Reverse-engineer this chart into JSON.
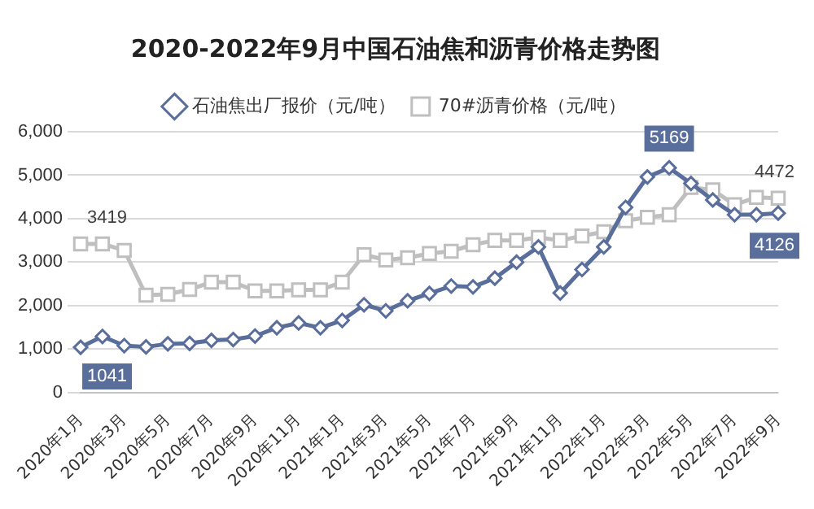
{
  "chart_data": {
    "type": "line",
    "title": "2020-2022年9月中国石油焦和沥青价格走势图",
    "categories": [
      "2020年1月",
      null,
      "2020年3月",
      null,
      "2020年5月",
      null,
      "2020年7月",
      null,
      "2020年9月",
      null,
      "2020年11月",
      null,
      "2021年1月",
      null,
      "2021年3月",
      null,
      "2021年5月",
      null,
      "2021年7月",
      null,
      "2021年9月",
      null,
      "2021年11月",
      null,
      "2022年1月",
      null,
      "2022年3月",
      null,
      "2022年5月",
      null,
      "2022年7月",
      null,
      "2022年9月"
    ],
    "series": [
      {
        "name": "石油焦出厂报价（元/吨）",
        "color": "#5a6e9c",
        "marker": "diamond",
        "values": [
          1041,
          1290,
          1080,
          1050,
          1120,
          1130,
          1200,
          1220,
          1300,
          1490,
          1600,
          1490,
          1660,
          2020,
          1880,
          2110,
          2280,
          2450,
          2430,
          2630,
          3000,
          3350,
          2290,
          2830,
          3350,
          4260,
          4960,
          5169,
          4810,
          4430,
          4090,
          4090,
          4126
        ],
        "value_labels": [
          "1041",
          null,
          null,
          null,
          null,
          null,
          null,
          null,
          null,
          null,
          null,
          null,
          null,
          null,
          null,
          null,
          null,
          null,
          null,
          null,
          null,
          null,
          null,
          null,
          null,
          null,
          null,
          "5169",
          null,
          null,
          null,
          null,
          "4126"
        ]
      },
      {
        "name": "70#沥青价格（元/吨）",
        "color": "#bfbfbf",
        "marker": "square",
        "values": [
          3419,
          3420,
          3270,
          2240,
          2260,
          2370,
          2540,
          2540,
          2340,
          2340,
          2360,
          2360,
          2540,
          3170,
          3050,
          3100,
          3200,
          3250,
          3400,
          3500,
          3500,
          3570,
          3500,
          3600,
          3700,
          3950,
          4030,
          4090,
          4720,
          4660,
          4320,
          4490,
          4472
        ],
        "value_labels": [
          "3419",
          null,
          null,
          null,
          null,
          null,
          null,
          null,
          null,
          null,
          null,
          null,
          null,
          null,
          null,
          null,
          null,
          null,
          null,
          null,
          null,
          null,
          null,
          null,
          null,
          null,
          null,
          null,
          null,
          null,
          null,
          null,
          "4472"
        ]
      }
    ],
    "ylim": [
      0,
      6000
    ],
    "yticks": [
      0,
      {
        "value": 1000,
        "label": "1,000"
      },
      {
        "value": 2000,
        "label": "2,000"
      },
      {
        "value": 3000,
        "label": "3,000"
      },
      {
        "value": 4000,
        "label": "4,000"
      },
      {
        "value": 5000,
        "label": "5,000"
      },
      {
        "value": 6000,
        "label": "6,000"
      }
    ],
    "grid": "y",
    "legend": "top",
    "line_style": "solid"
  }
}
